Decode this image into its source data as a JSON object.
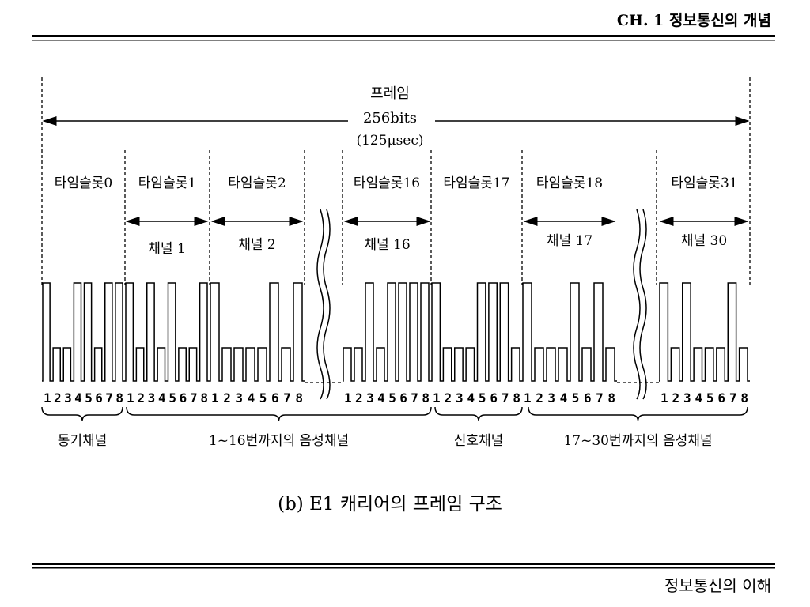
{
  "header": {
    "title": "CH. 1 정보통신의 개념"
  },
  "frame": {
    "label": "프레임",
    "bits": "256bits",
    "duration": "(125μsec)"
  },
  "slots": [
    {
      "label": "타임슬롯0",
      "bits": "12345678"
    },
    {
      "label": "타임슬롯1",
      "bits": "12345678"
    },
    {
      "label": "타임슬롯2",
      "bits": "12345678"
    },
    {
      "label": "타임슬롯16",
      "bits": "12345678"
    },
    {
      "label": "타임슬롯17",
      "bits": "12345678"
    },
    {
      "label": "타임슬롯18",
      "bits": "12345678"
    },
    {
      "label": "타임슬롯31",
      "bits": "12345678"
    }
  ],
  "channels": [
    "채널 1",
    "채널 2",
    "채널 16",
    "채널 17",
    "채널 30"
  ],
  "groups": [
    "동기채널",
    "1~16번까지의 음성채널",
    "신호채널",
    "17~30번까지의 음성채널"
  ],
  "caption": "(b) E1 캐리어의 프레임 구조",
  "footer": "정보통신의 이해"
}
